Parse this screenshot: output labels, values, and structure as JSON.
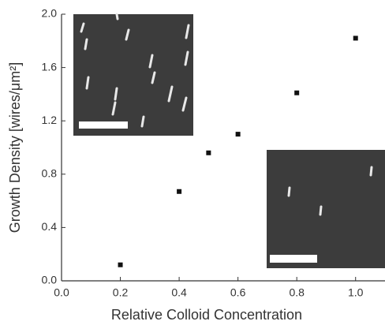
{
  "chart_data": {
    "type": "scatter",
    "x_label": "Relative Colloid Concentration",
    "y_label": "Growth Density [wires/μm²]",
    "x": [
      0.2,
      0.4,
      0.5,
      0.6,
      0.8,
      1.0
    ],
    "values": [
      0.12,
      0.67,
      0.96,
      1.1,
      1.41,
      1.82
    ],
    "color": "#111111",
    "xlim": [
      0,
      1.1
    ],
    "ylim": [
      0,
      2.0
    ],
    "xticks": [
      {
        "value": 0,
        "label": "0.0"
      },
      0.2,
      0.4,
      0.6,
      0.8,
      {
        "value": 1.0,
        "label": "1.0"
      }
    ],
    "yticks": [
      {
        "value": 0,
        "label": "0.0"
      },
      0.4,
      0.8,
      1.2,
      1.6,
      {
        "value": 2.0,
        "label": "2.0"
      }
    ]
  }
}
